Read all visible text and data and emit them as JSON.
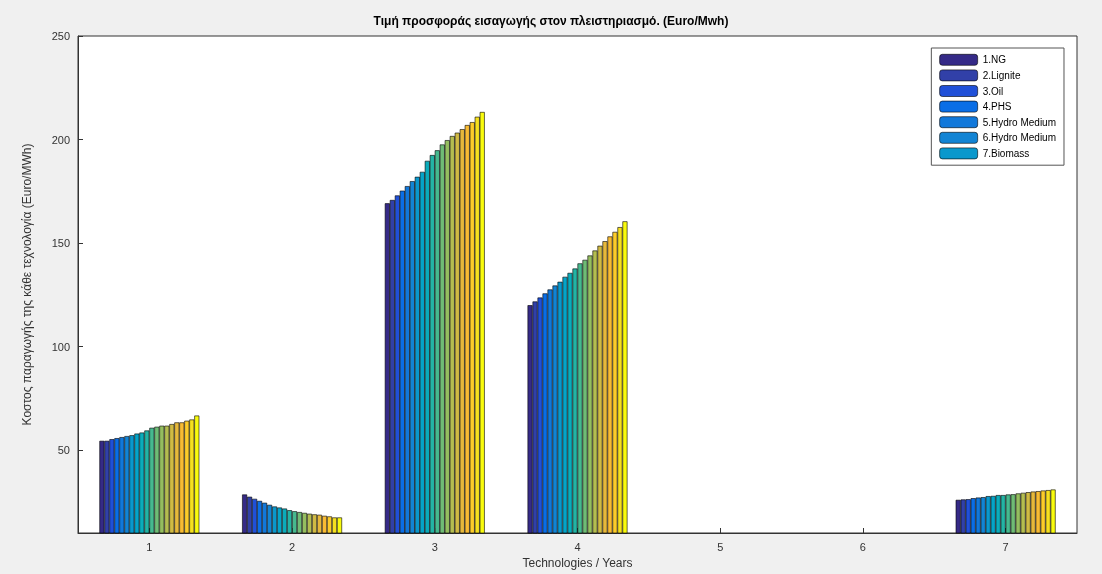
{
  "chart_data": {
    "type": "bar",
    "title": "Τιμή προσφοράς εισαγωγής στον πλειστηριασμό. (Euro/Mwh)",
    "xlabel": "Technologies / Years",
    "ylabel": "Κοστος παραγωγής της κάθε τεχνολογία (Euro/MWh)",
    "categories": [
      "1",
      "2",
      "3",
      "4",
      "5",
      "6",
      "7"
    ],
    "ylim": [
      10,
      250
    ],
    "yticks": [
      50,
      100,
      150,
      200,
      250
    ],
    "grid": false,
    "legend": "top right",
    "series": [
      {
        "name": "1.NG",
        "color": "#352a87",
        "values": [
          54.5,
          28.6,
          169.2,
          120.0,
          null,
          null,
          26.0
        ]
      },
      {
        "name": "2.Lignite",
        "color": "#3140a8",
        "values": [
          54.5,
          27.5,
          170.8,
          121.8,
          null,
          null,
          26.2
        ]
      },
      {
        "name": "3.Oil",
        "color": "#2050d8",
        "values": [
          55.3,
          26.5,
          173.0,
          123.7,
          null,
          null,
          26.3
        ]
      },
      {
        "name": "4.PHS",
        "color": "#0a6ee6",
        "values": [
          55.8,
          25.5,
          175.3,
          125.7,
          null,
          null,
          26.8
        ]
      },
      {
        "name": "5.Hydro Medium",
        "color": "#1178da",
        "values": [
          56.3,
          24.6,
          177.5,
          127.6,
          null,
          null,
          27.1
        ]
      },
      {
        "name": "6.Hydro Medium",
        "color": "#1284d4",
        "values": [
          56.8,
          23.6,
          179.9,
          129.5,
          null,
          null,
          27.3
        ]
      },
      {
        "name": "7.Biomass",
        "color": "#0a98cc",
        "values": [
          57.2,
          22.8,
          182.0,
          131.3,
          null,
          null,
          27.8
        ]
      },
      {
        "color": "#05a4c8",
        "values": [
          58.0,
          22.3,
          184.4,
          133.7,
          null,
          null,
          27.9
        ]
      },
      {
        "color": "#0bacbb",
        "values": [
          58.5,
          21.8,
          189.7,
          135.6,
          null,
          null,
          28.3
        ]
      },
      {
        "color": "#23b4a5",
        "values": [
          59.5,
          21.0,
          192.5,
          137.7,
          null,
          null,
          28.3
        ]
      },
      {
        "color": "#46b98f",
        "values": [
          60.8,
          20.5,
          194.8,
          140.2,
          null,
          null,
          28.6
        ]
      },
      {
        "color": "#6fbc75",
        "values": [
          61.3,
          20.1,
          197.6,
          141.9,
          null,
          null,
          28.7
        ]
      },
      {
        "color": "#95be5f",
        "values": [
          61.8,
          19.7,
          199.7,
          144.0,
          null,
          null,
          29.1
        ]
      },
      {
        "color": "#b4bd50",
        "values": [
          61.8,
          19.3,
          201.7,
          146.4,
          null,
          null,
          29.4
        ]
      },
      {
        "color": "#d0ba43",
        "values": [
          62.6,
          19.0,
          203.3,
          148.7,
          null,
          null,
          29.7
        ]
      },
      {
        "color": "#e6b83b",
        "values": [
          63.4,
          18.8,
          205.0,
          150.9,
          null,
          null,
          30.0
        ]
      },
      {
        "color": "#f8bb33",
        "values": [
          63.4,
          18.3,
          207.0,
          153.2,
          null,
          null,
          30.2
        ]
      },
      {
        "color": "#fccc2a",
        "values": [
          64.2,
          18.0,
          208.4,
          155.4,
          null,
          null,
          30.5
        ]
      },
      {
        "color": "#f6e01f",
        "values": [
          64.8,
          17.5,
          211.0,
          157.7,
          null,
          null,
          30.7
        ]
      },
      {
        "color": "#f9fb0e",
        "values": [
          66.7,
          17.5,
          213.3,
          160.5,
          null,
          null,
          31.0
        ]
      }
    ]
  }
}
